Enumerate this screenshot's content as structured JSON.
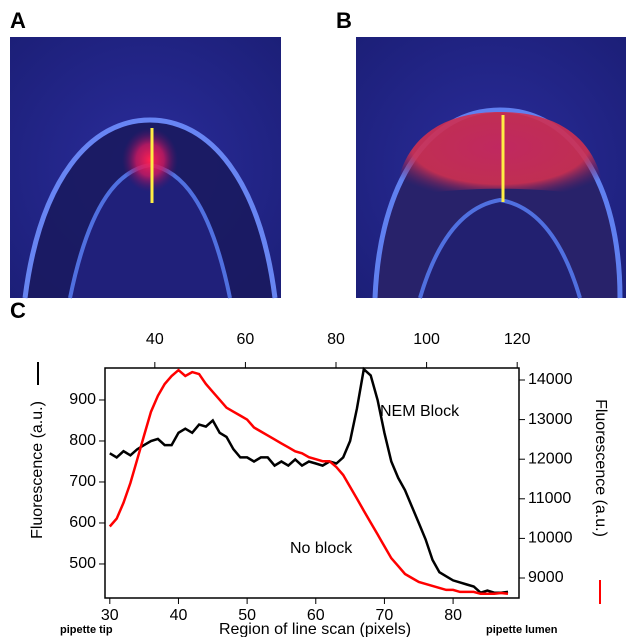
{
  "panel_labels": [
    "A",
    "B",
    "C"
  ],
  "chart_data": {
    "type": "line",
    "x_label": "Region of line scan (pixels)",
    "x_notes": [
      "pipette tip",
      "pipette lumen"
    ],
    "y_label": "Fluorescence (a.u.)",
    "y2_label": "Fluorescence (a.u.)",
    "x": [
      30,
      31,
      32,
      33,
      34,
      35,
      36,
      37,
      38,
      39,
      40,
      41,
      42,
      43,
      44,
      45,
      46,
      47,
      48,
      49,
      50,
      51,
      52,
      53,
      54,
      55,
      56,
      57,
      58,
      59,
      60,
      61,
      62,
      63,
      64,
      65,
      66,
      67,
      68,
      69,
      70,
      71,
      72,
      73,
      74,
      75,
      76,
      77,
      78,
      79,
      80,
      81,
      82,
      83,
      84,
      85,
      86,
      87,
      88
    ],
    "series": [
      {
        "name": "NEM Block",
        "color": "#000000",
        "axis": "y",
        "values": [
          770,
          760,
          775,
          765,
          780,
          790,
          800,
          805,
          790,
          790,
          820,
          830,
          820,
          840,
          835,
          850,
          820,
          810,
          780,
          760,
          760,
          750,
          760,
          760,
          740,
          750,
          740,
          755,
          740,
          750,
          745,
          740,
          750,
          745,
          760,
          800,
          880,
          975,
          960,
          900,
          820,
          750,
          710,
          680,
          640,
          600,
          560,
          510,
          480,
          470,
          460,
          455,
          450,
          445,
          430,
          435,
          430,
          430,
          432
        ]
      },
      {
        "name": "No block",
        "color": "#ff0000",
        "axis": "y2",
        "values": [
          10300,
          10500,
          10900,
          11400,
          12000,
          12600,
          13200,
          13600,
          13900,
          14100,
          14250,
          14100,
          14200,
          14150,
          13900,
          13700,
          13500,
          13300,
          13200,
          13100,
          13000,
          12800,
          12700,
          12600,
          12500,
          12400,
          12300,
          12200,
          12150,
          12050,
          12000,
          11950,
          11950,
          11800,
          11600,
          11300,
          11000,
          10700,
          10400,
          10100,
          9800,
          9500,
          9300,
          9100,
          9000,
          8900,
          8850,
          8800,
          8750,
          8700,
          8700,
          8650,
          8650,
          8650,
          8600,
          8600,
          8600,
          8620,
          8600
        ]
      }
    ],
    "xlim": [
      29.3,
      89.6
    ],
    "xticks": [
      30,
      40,
      50,
      60,
      70,
      80
    ],
    "x2lim": [
      29,
      120.4
    ],
    "x2ticks": [
      40,
      60,
      80,
      100,
      120
    ],
    "ylim": [
      417,
      978
    ],
    "yticks": [
      500,
      600,
      700,
      800,
      900
    ],
    "y2lim": [
      8495,
      14303
    ],
    "y2ticks": [
      9000,
      10000,
      11000,
      12000,
      13000,
      14000
    ]
  }
}
